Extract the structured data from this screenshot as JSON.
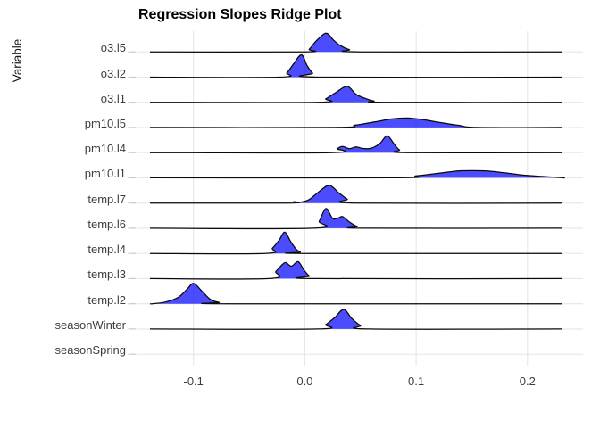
{
  "title": "Regression Slopes Ridge Plot",
  "y_axis_title": "Variable",
  "colors": {
    "ridge_fill": "rgba(0,0,255,0.70)",
    "ridge_outline": "#0a0a0a",
    "grid": "#e6e6e6",
    "axis_tick": "#c9c9c9",
    "axis_text": "#3d3d3d",
    "title_text": "#000000",
    "background": "#ffffff"
  },
  "chart_data": {
    "type": "area",
    "subtype": "ridgeline",
    "title": "Regression Slopes Ridge Plot",
    "xlabel": "",
    "ylabel": "Variable",
    "x_tick_values": [
      -0.1,
      0.0,
      0.1,
      0.2
    ],
    "x_tick_labels": [
      "-0.1",
      "0.0",
      "0.1",
      "0.2"
    ],
    "xlim": [
      -0.1495,
      0.25
    ],
    "baseline_span": [
      -0.139,
      0.2317
    ],
    "grid": "on",
    "legend": "none",
    "categories_top_to_bottom": [
      "o3.l5",
      "o3.l2",
      "o3.l1",
      "pm10.l5",
      "pm10.l4",
      "pm10.l1",
      "temp.l7",
      "temp.l6",
      "temp.l4",
      "temp.l3",
      "temp.l2",
      "seasonWinter",
      "seasonSpring"
    ],
    "height_units": "px (row spacing = 28.25px)",
    "series": [
      {
        "variable": "o3.l5",
        "has_baseline": true,
        "peak_x": 0.019,
        "points": [
          [
            -0.002,
            0
          ],
          [
            0.004,
            3
          ],
          [
            0.01,
            12
          ],
          [
            0.019,
            21
          ],
          [
            0.026,
            13
          ],
          [
            0.032,
            7
          ],
          [
            0.04,
            2.5
          ],
          [
            0.05,
            0
          ]
        ]
      },
      {
        "variable": "o3.l2",
        "has_baseline": true,
        "peak_x": -0.003,
        "points": [
          [
            -0.023,
            0
          ],
          [
            -0.016,
            5
          ],
          [
            -0.01,
            15
          ],
          [
            -0.003,
            25
          ],
          [
            0.002,
            13
          ],
          [
            0.007,
            4.5
          ],
          [
            0.013,
            0
          ]
        ]
      },
      {
        "variable": "o3.l1",
        "has_baseline": true,
        "peak_x": 0.038,
        "points": [
          [
            0.011,
            0
          ],
          [
            0.019,
            4
          ],
          [
            0.028,
            11
          ],
          [
            0.038,
            18
          ],
          [
            0.046,
            9
          ],
          [
            0.054,
            4.5
          ],
          [
            0.062,
            1.5
          ],
          [
            0.072,
            0
          ]
        ]
      },
      {
        "variable": "pm10.l5",
        "has_baseline": true,
        "peak_x": 0.092,
        "points": [
          [
            0.027,
            0
          ],
          [
            0.045,
            2.5
          ],
          [
            0.062,
            6
          ],
          [
            0.078,
            9.5
          ],
          [
            0.092,
            10.5
          ],
          [
            0.107,
            8.5
          ],
          [
            0.124,
            5
          ],
          [
            0.14,
            2
          ],
          [
            0.155,
            0
          ]
        ]
      },
      {
        "variable": "pm10.l4",
        "has_baseline": true,
        "peak_x": 0.074,
        "points": [
          [
            0.023,
            0
          ],
          [
            0.029,
            4.5
          ],
          [
            0.034,
            7
          ],
          [
            0.04,
            4.5
          ],
          [
            0.046,
            6.5
          ],
          [
            0.051,
            5
          ],
          [
            0.057,
            4.5
          ],
          [
            0.062,
            6
          ],
          [
            0.068,
            11
          ],
          [
            0.074,
            19
          ],
          [
            0.08,
            10
          ],
          [
            0.085,
            3
          ],
          [
            0.092,
            0
          ]
        ]
      },
      {
        "variable": "pm10.l1",
        "has_baseline": true,
        "peak_x": 0.15,
        "points": [
          [
            0.08,
            0
          ],
          [
            0.1,
            2.2
          ],
          [
            0.12,
            5
          ],
          [
            0.136,
            7.5
          ],
          [
            0.15,
            8
          ],
          [
            0.165,
            7.5
          ],
          [
            0.18,
            5.5
          ],
          [
            0.196,
            3
          ],
          [
            0.213,
            1.5
          ],
          [
            0.232,
            0
          ]
        ]
      },
      {
        "variable": "temp.l7",
        "has_baseline": true,
        "peak_x": 0.022,
        "points": [
          [
            -0.015,
            0
          ],
          [
            -0.01,
            1.5
          ],
          [
            -0.004,
            1
          ],
          [
            0.004,
            4
          ],
          [
            0.013,
            13
          ],
          [
            0.022,
            20
          ],
          [
            0.03,
            12
          ],
          [
            0.038,
            4.5
          ],
          [
            0.047,
            0
          ]
        ]
      },
      {
        "variable": "temp.l6",
        "has_baseline": true,
        "peak_x": 0.019,
        "points": [
          [
            0.008,
            0
          ],
          [
            0.013,
            8
          ],
          [
            0.019,
            22
          ],
          [
            0.025,
            11
          ],
          [
            0.03,
            11.5
          ],
          [
            0.034,
            13
          ],
          [
            0.04,
            7
          ],
          [
            0.047,
            2
          ],
          [
            0.053,
            0
          ]
        ]
      },
      {
        "variable": "temp.l4",
        "has_baseline": true,
        "peak_x": -0.018,
        "points": [
          [
            -0.036,
            0
          ],
          [
            -0.029,
            6
          ],
          [
            -0.023,
            15
          ],
          [
            -0.018,
            24
          ],
          [
            -0.013,
            14
          ],
          [
            -0.008,
            5
          ],
          [
            -0.004,
            1.5
          ],
          [
            0.001,
            0
          ]
        ]
      },
      {
        "variable": "temp.l3",
        "has_baseline": true,
        "peak_x": -0.006,
        "points": [
          [
            -0.032,
            0
          ],
          [
            -0.026,
            8
          ],
          [
            -0.02,
            16
          ],
          [
            -0.017,
            18
          ],
          [
            -0.012,
            14
          ],
          [
            -0.006,
            19
          ],
          [
            -0.001,
            10
          ],
          [
            0.004,
            3
          ],
          [
            0.01,
            0
          ]
        ]
      },
      {
        "variable": "temp.l2",
        "has_baseline": true,
        "peak_x": -0.1,
        "points": [
          [
            -0.137,
            0
          ],
          [
            -0.125,
            2
          ],
          [
            -0.114,
            7
          ],
          [
            -0.106,
            16
          ],
          [
            -0.1,
            23
          ],
          [
            -0.093,
            15
          ],
          [
            -0.085,
            5
          ],
          [
            -0.077,
            1.5
          ],
          [
            -0.068,
            0
          ]
        ]
      },
      {
        "variable": "seasonWinter",
        "has_baseline": true,
        "peak_x": 0.035,
        "points": [
          [
            0.011,
            0
          ],
          [
            0.019,
            5
          ],
          [
            0.027,
            13
          ],
          [
            0.035,
            22
          ],
          [
            0.042,
            12
          ],
          [
            0.05,
            4
          ],
          [
            0.059,
            0
          ]
        ]
      },
      {
        "variable": "seasonSpring",
        "has_baseline": false,
        "peak_x": null,
        "points": []
      }
    ]
  }
}
